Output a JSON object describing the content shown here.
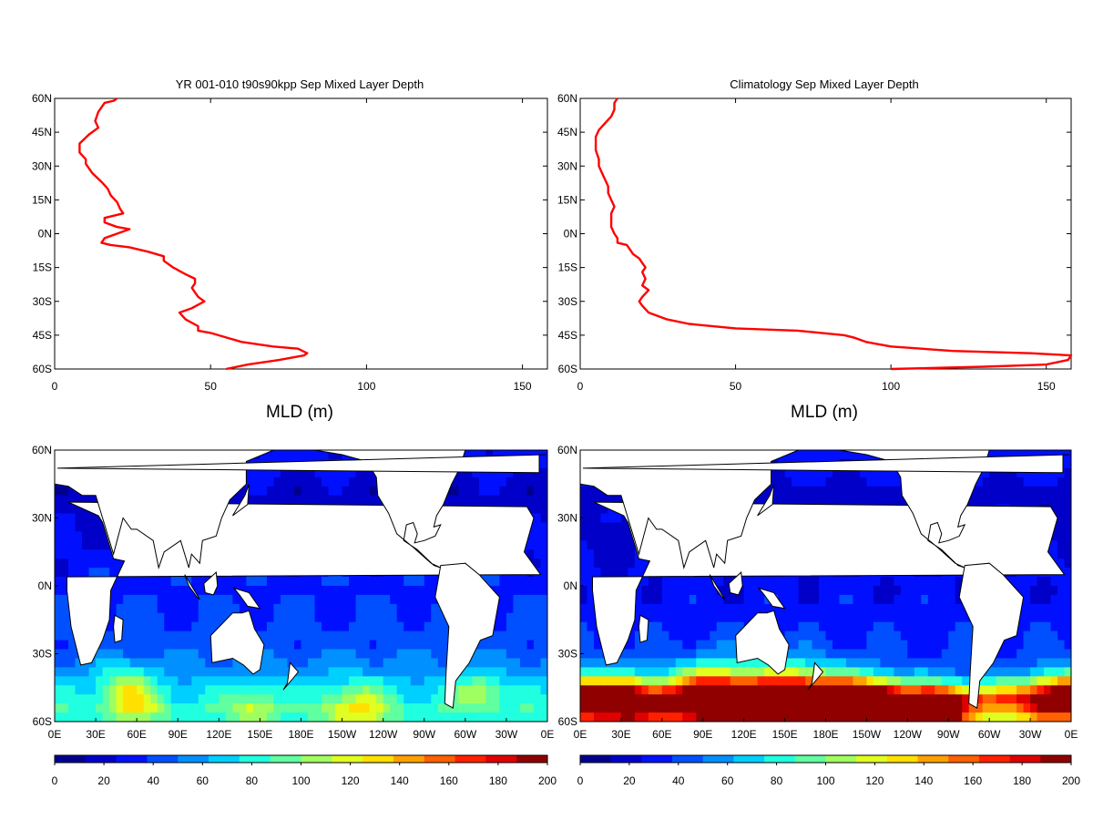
{
  "palette": [
    "#00008f",
    "#0000c8",
    "#0010ff",
    "#0050ff",
    "#0090ff",
    "#00d0ff",
    "#20ffdf",
    "#60ff9f",
    "#a0ff60",
    "#e0ff20",
    "#ffe000",
    "#ffa000",
    "#ff6000",
    "#ff2000",
    "#df0000",
    "#900000"
  ],
  "land_color": "#ffffff",
  "coast_color": "#000000",
  "line_color": "#ff0000",
  "chart_data": [
    {
      "type": "line",
      "panel": "profile-left",
      "title": "YR 001-010 t90s90kpp Sep Mixed Layer Depth",
      "xlabel": "MLD (m)",
      "ylabel": "",
      "xlim": [
        0,
        158
      ],
      "ylim": [
        -60,
        60
      ],
      "xticks": [
        "0",
        "50",
        "100",
        "150"
      ],
      "xtick_values": [
        0,
        50,
        100,
        150
      ],
      "yticks": [
        "60N",
        "45N",
        "30N",
        "15N",
        "0N",
        "15S",
        "30S",
        "45S",
        "60S"
      ],
      "ytick_values": [
        60,
        45,
        30,
        15,
        0,
        -15,
        -30,
        -45,
        -60
      ],
      "series": [
        {
          "color": "#ff0000",
          "points": [
            [
              55,
              -60
            ],
            [
              62,
              -58
            ],
            [
              72,
              -56
            ],
            [
              80,
              -54
            ],
            [
              81,
              -53
            ],
            [
              78,
              -51
            ],
            [
              70,
              -50
            ],
            [
              60,
              -48
            ],
            [
              55,
              -46
            ],
            [
              50,
              -44
            ],
            [
              46,
              -43
            ],
            [
              46,
              -41
            ],
            [
              42,
              -38
            ],
            [
              40,
              -35
            ],
            [
              44,
              -33
            ],
            [
              48,
              -30
            ],
            [
              46,
              -28
            ],
            [
              45,
              -26
            ],
            [
              44,
              -24
            ],
            [
              45,
              -22
            ],
            [
              45,
              -20
            ],
            [
              42,
              -18
            ],
            [
              38,
              -15
            ],
            [
              35,
              -12
            ],
            [
              35,
              -10
            ],
            [
              30,
              -8
            ],
            [
              24,
              -6
            ],
            [
              18,
              -5
            ],
            [
              15,
              -4
            ],
            [
              16,
              -2
            ],
            [
              20,
              0
            ],
            [
              24,
              2
            ],
            [
              20,
              3
            ],
            [
              16,
              5
            ],
            [
              16,
              7
            ],
            [
              22,
              9
            ],
            [
              21,
              11
            ],
            [
              20,
              14
            ],
            [
              18,
              17
            ],
            [
              17,
              20
            ],
            [
              15,
              23
            ],
            [
              12,
              27
            ],
            [
              10,
              31
            ],
            [
              10,
              33
            ],
            [
              8,
              36
            ],
            [
              8,
              40
            ],
            [
              11,
              44
            ],
            [
              14,
              47
            ],
            [
              13,
              50
            ],
            [
              14,
              54
            ],
            [
              16,
              58
            ],
            [
              19,
              59
            ],
            [
              20,
              60
            ]
          ]
        }
      ]
    },
    {
      "type": "line",
      "panel": "profile-right",
      "title": "Climatology Sep Mixed Layer Depth",
      "xlabel": "MLD (m)",
      "ylabel": "",
      "xlim": [
        0,
        158
      ],
      "ylim": [
        -60,
        60
      ],
      "xticks": [
        "0",
        "50",
        "100",
        "150"
      ],
      "xtick_values": [
        0,
        50,
        100,
        150
      ],
      "yticks": [
        "60N",
        "45N",
        "30N",
        "15N",
        "0N",
        "15S",
        "30S",
        "45S",
        "60S"
      ],
      "ytick_values": [
        60,
        45,
        30,
        15,
        0,
        -15,
        -30,
        -45,
        -60
      ],
      "series": [
        {
          "color": "#ff0000",
          "points": [
            [
              100,
              -60
            ],
            [
              130,
              -59
            ],
            [
              150,
              -58
            ],
            [
              157,
              -56
            ],
            [
              158,
              -54
            ],
            [
              145,
              -53
            ],
            [
              120,
              -52
            ],
            [
              100,
              -50
            ],
            [
              92,
              -48
            ],
            [
              88,
              -46
            ],
            [
              85,
              -45
            ],
            [
              70,
              -43
            ],
            [
              50,
              -42
            ],
            [
              35,
              -40
            ],
            [
              28,
              -38
            ],
            [
              22,
              -35
            ],
            [
              20,
              -32
            ],
            [
              19,
              -30
            ],
            [
              20,
              -28
            ],
            [
              22,
              -25
            ],
            [
              20,
              -23
            ],
            [
              21,
              -20
            ],
            [
              20,
              -17
            ],
            [
              21,
              -15
            ],
            [
              20,
              -13
            ],
            [
              19,
              -11
            ],
            [
              17,
              -9
            ],
            [
              16,
              -7
            ],
            [
              15,
              -5
            ],
            [
              12,
              -4
            ],
            [
              12,
              -2
            ],
            [
              11,
              0
            ],
            [
              10,
              3
            ],
            [
              10,
              6
            ],
            [
              10,
              9
            ],
            [
              11,
              12
            ],
            [
              10,
              15
            ],
            [
              9,
              18
            ],
            [
              9,
              21
            ],
            [
              8,
              24
            ],
            [
              7,
              27
            ],
            [
              6,
              30
            ],
            [
              6,
              33
            ],
            [
              5,
              37
            ],
            [
              5,
              40
            ],
            [
              5,
              43
            ],
            [
              6,
              46
            ],
            [
              8,
              49
            ],
            [
              10,
              52
            ],
            [
              11,
              55
            ],
            [
              11,
              58
            ],
            [
              12,
              60
            ]
          ]
        }
      ]
    },
    {
      "type": "heatmap",
      "panel": "map-left",
      "title": "",
      "colorbar_range": [
        0,
        200
      ],
      "colorbar_ticks": [
        "0",
        "20",
        "40",
        "60",
        "80",
        "100",
        "120",
        "140",
        "160",
        "180",
        "200"
      ],
      "xticks": [
        "0E",
        "30E",
        "60E",
        "90E",
        "120E",
        "150E",
        "180E",
        "150W",
        "120W",
        "90W",
        "60W",
        "30W",
        "0E"
      ],
      "yticks": [
        "60N",
        "30N",
        "0N",
        "30S",
        "60S"
      ],
      "lon_range": [
        0,
        360
      ],
      "lat_range": [
        -60,
        60
      ],
      "value_units": "m",
      "lat_profile": [
        [
          -60,
          75
        ],
        [
          -55,
          85
        ],
        [
          -50,
          75
        ],
        [
          -45,
          70
        ],
        [
          -40,
          60
        ],
        [
          -35,
          55
        ],
        [
          -30,
          48
        ],
        [
          -25,
          42
        ],
        [
          -20,
          40
        ],
        [
          -10,
          38
        ],
        [
          0,
          35
        ],
        [
          10,
          30
        ],
        [
          20,
          24
        ],
        [
          30,
          22
        ],
        [
          40,
          18
        ],
        [
          50,
          26
        ],
        [
          60,
          32
        ]
      ],
      "hotspots": [
        [
          58,
          -52,
          45,
          10
        ],
        [
          145,
          -54,
          35,
          8
        ],
        [
          220,
          -55,
          45,
          12
        ],
        [
          310,
          -47,
          40,
          8
        ],
        [
          50,
          -42,
          30,
          8
        ]
      ]
    },
    {
      "type": "heatmap",
      "panel": "map-right",
      "title": "",
      "colorbar_range": [
        0,
        200
      ],
      "colorbar_ticks": [
        "0",
        "20",
        "40",
        "60",
        "80",
        "100",
        "120",
        "140",
        "160",
        "180",
        "200"
      ],
      "xticks": [
        "0E",
        "30E",
        "60E",
        "90E",
        "120E",
        "150E",
        "180E",
        "150W",
        "120W",
        "90W",
        "60W",
        "30W",
        "0E"
      ],
      "yticks": [
        "60N",
        "30N",
        "0N",
        "30S",
        "60S"
      ],
      "lon_range": [
        0,
        360
      ],
      "lat_range": [
        -60,
        60
      ],
      "value_units": "m",
      "lat_profile": [
        [
          -60,
          110
        ],
        [
          -55,
          140
        ],
        [
          -50,
          160
        ],
        [
          -45,
          110
        ],
        [
          -40,
          60
        ],
        [
          -35,
          45
        ],
        [
          -30,
          38
        ],
        [
          -20,
          35
        ],
        [
          -10,
          32
        ],
        [
          0,
          28
        ],
        [
          10,
          25
        ],
        [
          20,
          22
        ],
        [
          30,
          20
        ],
        [
          40,
          18
        ],
        [
          50,
          28
        ],
        [
          60,
          35
        ]
      ],
      "hotspots": [
        [
          30,
          -52,
          90,
          12
        ],
        [
          100,
          -50,
          120,
          15
        ],
        [
          160,
          -52,
          140,
          15
        ],
        [
          210,
          -55,
          160,
          12
        ],
        [
          260,
          -56,
          170,
          8
        ],
        [
          350,
          -48,
          80,
          10
        ]
      ]
    }
  ]
}
